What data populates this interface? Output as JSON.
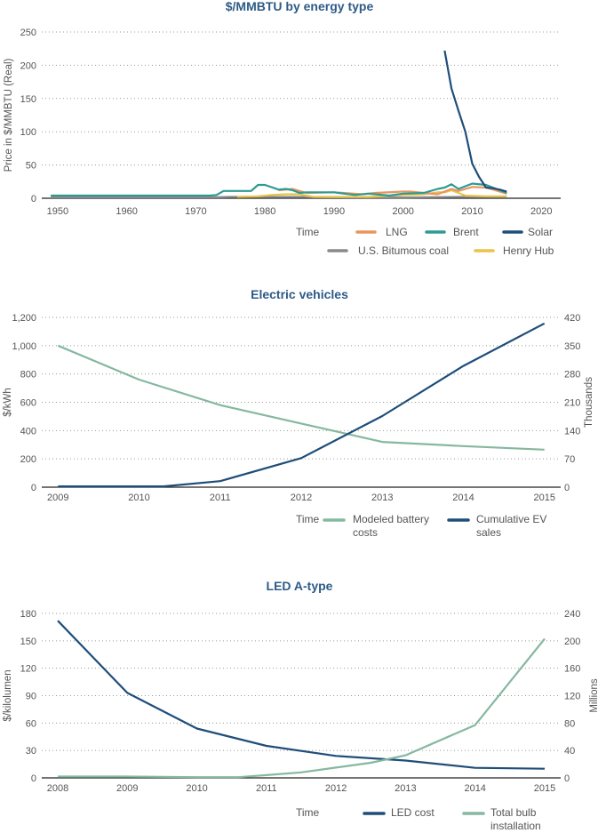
{
  "chart_data": [
    {
      "type": "line",
      "title": "$/MMBTU by energy type",
      "xlabel": "Time",
      "ylabel": "Price in $/MMBTU (Real)",
      "xlim": [
        1947.7,
        2022.8
      ],
      "ylim": [
        0,
        250
      ],
      "xticks": [
        1950,
        1960,
        1970,
        1980,
        1990,
        2000,
        2010,
        2020
      ],
      "yticks": [
        0,
        50,
        100,
        150,
        200,
        250
      ],
      "grid": true,
      "legend": "bottom-right",
      "series": [
        {
          "name": "U.S. Bitumous coal",
          "color": "#8a8a8a",
          "x": [
            1949,
            1960,
            1973,
            1975,
            1980,
            1985,
            1990,
            2000,
            2008,
            2010,
            2015
          ],
          "y": [
            1.5,
            1.5,
            1.5,
            2,
            2,
            2,
            1.5,
            1.2,
            2,
            2,
            1.8
          ]
        },
        {
          "name": "Henry Hub",
          "color": "#e8c44a",
          "x": [
            1976,
            1979,
            1981,
            1983,
            1985,
            1987,
            1990,
            1995,
            2000,
            2003,
            2005,
            2006,
            2007,
            2008,
            2009,
            2012,
            2015
          ],
          "y": [
            2,
            3,
            5,
            6,
            6,
            2,
            2,
            2,
            5,
            6,
            9,
            9,
            12,
            8,
            4,
            3,
            3
          ]
        },
        {
          "name": "LNG",
          "color": "#e8955f",
          "x": [
            1982,
            1984,
            1986,
            1990,
            1994,
            1996,
            2000,
            2001,
            2003,
            2005,
            2007,
            2008,
            2010,
            2012,
            2015
          ],
          "y": [
            12,
            14,
            8,
            9,
            6,
            8,
            10,
            10,
            8,
            6,
            14,
            11,
            17,
            16,
            7
          ]
        },
        {
          "name": "Brent",
          "color": "#2e9a94",
          "x": [
            1949,
            1972,
            1973,
            1974,
            1978,
            1979,
            1980,
            1982,
            1983,
            1984,
            1985,
            1986,
            1990,
            1993,
            1995,
            1998,
            2000,
            2003,
            2005,
            2006,
            2007,
            2008,
            2010,
            2012,
            2015
          ],
          "y": [
            4,
            4,
            5,
            11,
            11,
            20,
            20,
            13,
            14,
            12,
            8,
            9,
            9,
            5,
            7,
            4,
            7,
            8,
            14,
            16,
            21,
            14,
            22,
            20,
            8
          ]
        },
        {
          "name": "Solar",
          "color": "#1f4e79",
          "x": [
            2006,
            2007,
            2008,
            2009,
            2010,
            2011,
            2012,
            2013,
            2014,
            2015
          ],
          "y": [
            222,
            165,
            132,
            100,
            52,
            32,
            16,
            15,
            13,
            10
          ]
        }
      ],
      "legend_order": [
        "LNG",
        "Brent",
        "Solar",
        "U.S. Bitumous coal",
        "Henry Hub"
      ]
    },
    {
      "type": "line",
      "title": "Electric vehicles",
      "xlabel": "Time",
      "ylabel": "$/kWh",
      "ylabel_right": "Thousands",
      "xlim": [
        2008.8,
        2015.2
      ],
      "ylim": [
        0,
        1200
      ],
      "ylim_right": [
        0,
        420
      ],
      "xticks": [
        2009,
        2010,
        2011,
        2012,
        2013,
        2014,
        2015
      ],
      "yticks": [
        0,
        200,
        400,
        600,
        800,
        1000,
        1200
      ],
      "ytick_labels": [
        "0",
        "200",
        "400",
        "600",
        "800",
        "1,000",
        "1,200"
      ],
      "yticks_right": [
        0,
        70,
        140,
        210,
        280,
        350,
        420
      ],
      "grid": true,
      "legend": "bottom-right",
      "series": [
        {
          "name": "Modeled battery costs",
          "axis": "left",
          "color": "#86b8a0",
          "x": [
            2009,
            2010,
            2011,
            2012,
            2013,
            2014,
            2015
          ],
          "y": [
            1000,
            760,
            580,
            450,
            320,
            290,
            265
          ]
        },
        {
          "name": "Cumulative EV sales",
          "axis": "right",
          "color": "#1f4e79",
          "x": [
            2009,
            2010,
            2010.3,
            2011,
            2012,
            2013,
            2014,
            2015
          ],
          "y": [
            2,
            2,
            2,
            15,
            72,
            176,
            300,
            405
          ]
        }
      ],
      "legend_lines": [
        [
          "Modeled battery",
          "costs"
        ],
        [
          "Cumulative EV",
          "sales"
        ]
      ]
    },
    {
      "type": "line",
      "title": "LED A-type",
      "xlabel": "Time",
      "ylabel": "$/kilolumen",
      "ylabel_right": "Millions",
      "xlim": [
        2007.77,
        2015.23
      ],
      "ylim": [
        0,
        180
      ],
      "ylim_right": [
        0,
        240
      ],
      "xticks": [
        2008,
        2009,
        2010,
        2011,
        2012,
        2013,
        2014,
        2015
      ],
      "yticks": [
        0,
        30,
        60,
        90,
        120,
        150,
        180
      ],
      "yticks_right": [
        0,
        40,
        80,
        120,
        160,
        200,
        240
      ],
      "grid": true,
      "legend": "bottom-right",
      "series": [
        {
          "name": "LED cost",
          "axis": "left",
          "color": "#1f4e79",
          "x": [
            2008,
            2009,
            2010,
            2011,
            2012,
            2013,
            2014,
            2015
          ],
          "y": [
            172,
            93,
            54,
            35,
            24,
            19,
            11,
            10
          ]
        },
        {
          "name": "Total bulb installation",
          "axis": "right",
          "color": "#86b8a0",
          "x": [
            2008,
            2009,
            2010,
            2010.6,
            2011,
            2011.5,
            2012,
            2012.5,
            2013,
            2014,
            2015
          ],
          "y": [
            2,
            2,
            1,
            1,
            4,
            8,
            15,
            22,
            33,
            77,
            203
          ]
        }
      ],
      "legend_lines": [
        [
          "LED cost"
        ],
        [
          "Total bulb",
          "installation"
        ]
      ]
    }
  ]
}
